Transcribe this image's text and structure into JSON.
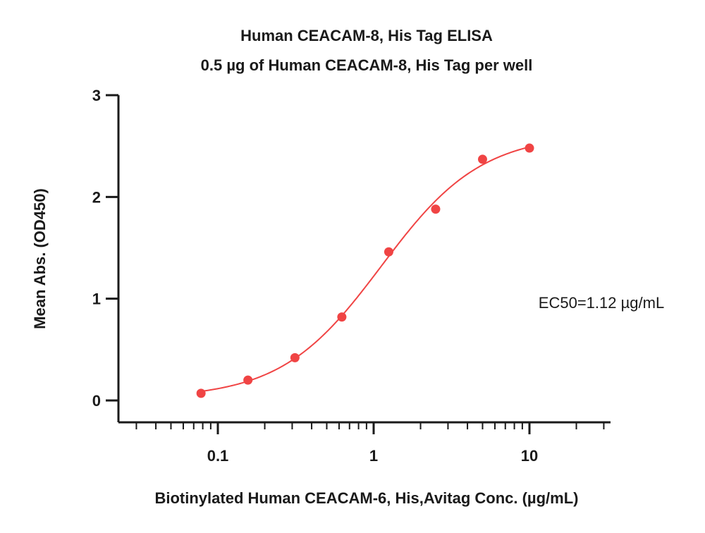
{
  "chart_data": {
    "type": "scatter",
    "title": "Human CEACAM-8, His Tag ELISA",
    "subtitle": "0.5 µg of Human CEACAM-8, His Tag per well",
    "xlabel": "Biotinylated Human CEACAM-6, His,Avitag Conc. (µg/mL)",
    "ylabel": "Mean Abs. (OD450)",
    "x_scale": "log",
    "xlim": [
      0.06,
      30
    ],
    "ylim": [
      0,
      3
    ],
    "x_ticks": [
      0.1,
      1,
      10
    ],
    "x_tick_labels": [
      "0.1",
      "1",
      "10"
    ],
    "y_ticks": [
      0,
      1,
      2,
      3
    ],
    "y_tick_labels": [
      "0",
      "1",
      "2",
      "3"
    ],
    "grid": false,
    "point_color": "#f04444",
    "curve_color": "#f04444",
    "series": [
      {
        "x": [
          0.078,
          0.156,
          0.3125,
          0.625,
          1.25,
          2.5,
          5,
          10
        ],
        "y": [
          0.07,
          0.2,
          0.42,
          0.82,
          1.46,
          1.88,
          2.37,
          2.48
        ]
      }
    ],
    "fit": {
      "model": "4PL",
      "bottom": 0.02,
      "top": 2.62,
      "ec50": 1.12,
      "hill": 1.35
    },
    "annotation": "EC50=1.12 µg/mL"
  }
}
